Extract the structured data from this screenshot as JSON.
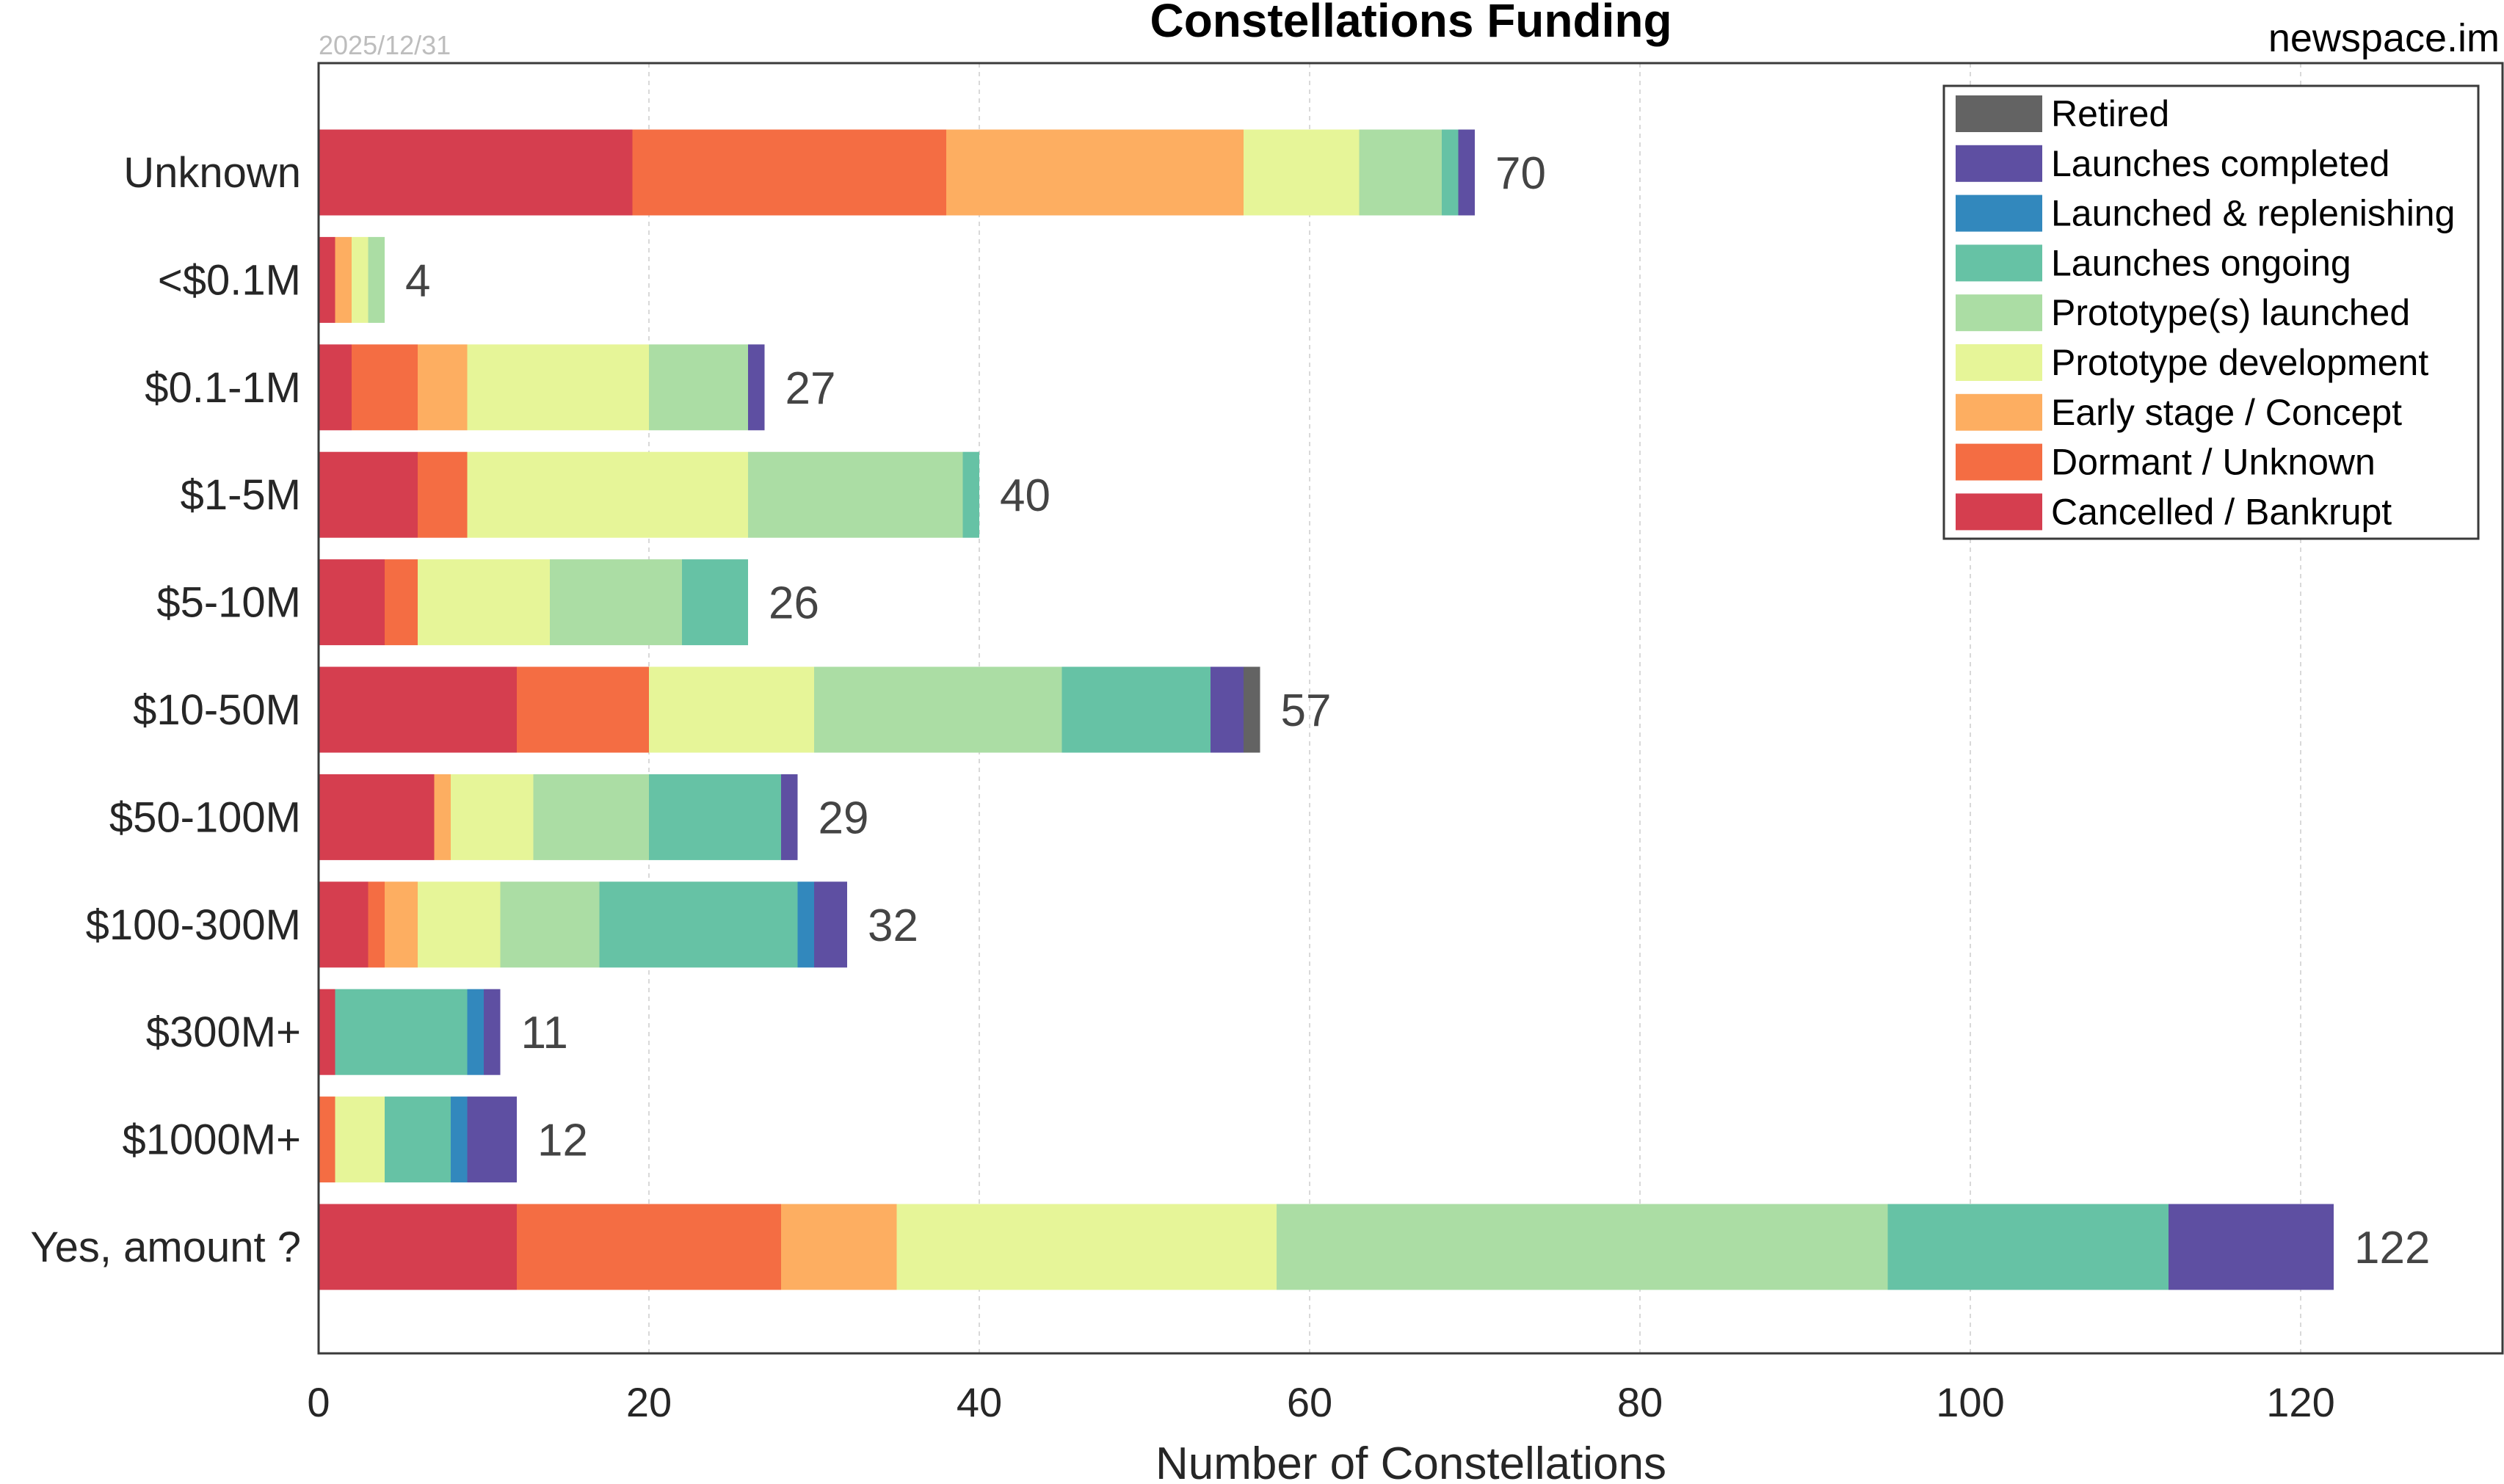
{
  "page": {
    "title": "Constellations Funding",
    "date": "2025/12/31",
    "site": "newspace.im"
  },
  "chart_data": {
    "type": "bar",
    "orientation": "horizontal",
    "stacked": true,
    "title": "Constellations Funding",
    "xlabel": "Number of Constellations",
    "ylabel": "",
    "xlim": [
      0,
      132
    ],
    "xticks": [
      0,
      20,
      40,
      60,
      80,
      100,
      120
    ],
    "xtick_labels": [
      "0",
      "20",
      "40",
      "60",
      "80",
      "100",
      "120"
    ],
    "grid": "vertical dashed",
    "legend_position": "top-right",
    "categories": [
      "Unknown",
      "<$0.1M",
      "$0.1-1M",
      "$1-5M",
      "$5-10M",
      "$10-50M",
      "$50-100M",
      "$100-300M",
      "$300M+",
      "$1000M+",
      "Yes, amount ?"
    ],
    "totals": [
      70,
      4,
      27,
      40,
      26,
      57,
      29,
      32,
      11,
      12,
      122
    ],
    "series": [
      {
        "name": "Cancelled / Bankrupt",
        "color": "#d53e4f",
        "values": [
          19,
          1,
          2,
          6,
          4,
          12,
          7,
          3,
          1,
          0,
          12
        ]
      },
      {
        "name": "Dormant / Unknown",
        "color": "#f46d43",
        "values": [
          19,
          0,
          4,
          3,
          2,
          8,
          0,
          1,
          0,
          1,
          16
        ]
      },
      {
        "name": "Early stage / Concept",
        "color": "#fdae61",
        "values": [
          18,
          1,
          3,
          0,
          0,
          0,
          1,
          2,
          0,
          0,
          7
        ]
      },
      {
        "name": "Prototype development",
        "color": "#e6f598",
        "values": [
          7,
          1,
          11,
          17,
          8,
          10,
          5,
          5,
          0,
          3,
          23
        ]
      },
      {
        "name": "Prototype(s) launched",
        "color": "#abdda4",
        "values": [
          5,
          1,
          6,
          13,
          8,
          15,
          7,
          6,
          0,
          0,
          37
        ]
      },
      {
        "name": "Launches ongoing",
        "color": "#66c2a5",
        "values": [
          1,
          0,
          0,
          1,
          4,
          9,
          8,
          12,
          8,
          4,
          17
        ]
      },
      {
        "name": "Launched & replenishing",
        "color": "#3288bd",
        "values": [
          0,
          0,
          0,
          0,
          0,
          0,
          0,
          1,
          1,
          1,
          0
        ]
      },
      {
        "name": "Launches completed",
        "color": "#5e4fa2",
        "values": [
          1,
          0,
          1,
          0,
          0,
          2,
          1,
          2,
          1,
          3,
          10
        ]
      },
      {
        "name": "Retired",
        "color": "#636363",
        "values": [
          0,
          0,
          0,
          0,
          0,
          1,
          0,
          0,
          0,
          0,
          0
        ]
      }
    ],
    "legend_order": [
      "Retired",
      "Launches completed",
      "Launched & replenishing",
      "Launches ongoing",
      "Prototype(s) launched",
      "Prototype development",
      "Early stage / Concept",
      "Dormant / Unknown",
      "Cancelled / Bankrupt"
    ]
  }
}
